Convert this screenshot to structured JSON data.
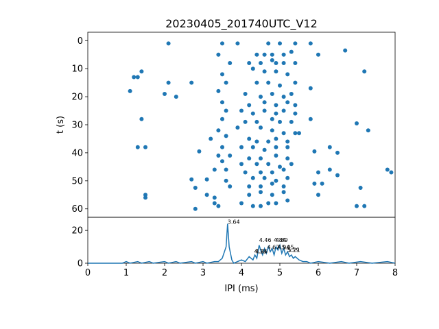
{
  "title": "20230405_201740UTC_V12",
  "colors": {
    "series": "#1f77b4",
    "axes": "#000000",
    "background": "#ffffff"
  },
  "chart_data": [
    {
      "type": "scatter",
      "ylabel": "t (s)",
      "xlim": [
        0,
        8
      ],
      "ylim": [
        63,
        -3
      ],
      "y_inverted": true,
      "yticks": [
        0,
        10,
        20,
        30,
        40,
        50,
        60
      ],
      "yticklabels": [
        "0",
        "10",
        "20",
        "30",
        "40",
        "50",
        "60"
      ],
      "grid": false,
      "points": [
        [
          2.1,
          1
        ],
        [
          3.5,
          1
        ],
        [
          3.9,
          1
        ],
        [
          4.7,
          1
        ],
        [
          5.0,
          1
        ],
        [
          5.4,
          1
        ],
        [
          5.8,
          1
        ],
        [
          3.4,
          5
        ],
        [
          4.4,
          5
        ],
        [
          4.6,
          5
        ],
        [
          4.8,
          5
        ],
        [
          5.1,
          5
        ],
        [
          5.3,
          4
        ],
        [
          6.0,
          5
        ],
        [
          6.7,
          3.5
        ],
        [
          3.7,
          8
        ],
        [
          4.2,
          8
        ],
        [
          4.5,
          8
        ],
        [
          4.8,
          7
        ],
        [
          4.9,
          8
        ],
        [
          5.1,
          8
        ],
        [
          5.4,
          8
        ],
        [
          1.4,
          11
        ],
        [
          3.5,
          12
        ],
        [
          4.3,
          10
        ],
        [
          4.6,
          11
        ],
        [
          4.9,
          11
        ],
        [
          5.2,
          12
        ],
        [
          7.2,
          11
        ],
        [
          1.2,
          13
        ],
        [
          1.3,
          13
        ],
        [
          2.1,
          15
        ],
        [
          2.7,
          15
        ],
        [
          3.6,
          15
        ],
        [
          4.4,
          15
        ],
        [
          4.7,
          15
        ],
        [
          5.0,
          16
        ],
        [
          5.4,
          15
        ],
        [
          5.8,
          17
        ],
        [
          1.1,
          18
        ],
        [
          2.0,
          19
        ],
        [
          2.3,
          20
        ],
        [
          3.4,
          18
        ],
        [
          4.1,
          19
        ],
        [
          4.5,
          20
        ],
        [
          4.8,
          19
        ],
        [
          5.1,
          20
        ],
        [
          5.3,
          19
        ],
        [
          3.5,
          22
        ],
        [
          4.2,
          23
        ],
        [
          4.6,
          22
        ],
        [
          4.9,
          23
        ],
        [
          5.2,
          22
        ],
        [
          5.4,
          23
        ],
        [
          3.6,
          25
        ],
        [
          4.0,
          25
        ],
        [
          4.3,
          26
        ],
        [
          4.6,
          25
        ],
        [
          4.9,
          26
        ],
        [
          5.1,
          25
        ],
        [
          5.4,
          26
        ],
        [
          1.4,
          28
        ],
        [
          3.5,
          28
        ],
        [
          4.1,
          29
        ],
        [
          4.4,
          29
        ],
        [
          4.8,
          28
        ],
        [
          5.0,
          29
        ],
        [
          5.3,
          29
        ],
        [
          5.8,
          28
        ],
        [
          7.0,
          29.5
        ],
        [
          3.4,
          32
        ],
        [
          3.9,
          31
        ],
        [
          4.5,
          31
        ],
        [
          4.8,
          32
        ],
        [
          5.1,
          33
        ],
        [
          5.4,
          33
        ],
        [
          5.5,
          33
        ],
        [
          7.3,
          32
        ],
        [
          3.2,
          35
        ],
        [
          3.6,
          34
        ],
        [
          4.2,
          35
        ],
        [
          4.4,
          36
        ],
        [
          4.7,
          36
        ],
        [
          4.9,
          35
        ],
        [
          5.2,
          36
        ],
        [
          1.3,
          38
        ],
        [
          1.5,
          38
        ],
        [
          3.5,
          38
        ],
        [
          4.0,
          38
        ],
        [
          4.3,
          38
        ],
        [
          4.6,
          39
        ],
        [
          4.9,
          38
        ],
        [
          5.2,
          38
        ],
        [
          5.9,
          39.5
        ],
        [
          6.3,
          38
        ],
        [
          2.9,
          39.5
        ],
        [
          3.4,
          41
        ],
        [
          3.7,
          41
        ],
        [
          4.2,
          42
        ],
        [
          4.5,
          42
        ],
        [
          4.9,
          41
        ],
        [
          5.2,
          42
        ],
        [
          6.5,
          40
        ],
        [
          3.5,
          43
        ],
        [
          4.0,
          44
        ],
        [
          4.4,
          44
        ],
        [
          4.7,
          44
        ],
        [
          5.0,
          45
        ],
        [
          5.3,
          44
        ],
        [
          3.3,
          46
        ],
        [
          3.6,
          46
        ],
        [
          4.1,
          47
        ],
        [
          4.5,
          47
        ],
        [
          4.8,
          47
        ],
        [
          5.1,
          46
        ],
        [
          6.0,
          47
        ],
        [
          6.3,
          46
        ],
        [
          7.8,
          46
        ],
        [
          7.9,
          47
        ],
        [
          2.7,
          49.5
        ],
        [
          3.1,
          49.5
        ],
        [
          3.6,
          50
        ],
        [
          4.3,
          49
        ],
        [
          4.6,
          49
        ],
        [
          4.9,
          50
        ],
        [
          5.2,
          49
        ],
        [
          6.5,
          48
        ],
        [
          2.8,
          52.5
        ],
        [
          3.7,
          52
        ],
        [
          4.2,
          52
        ],
        [
          4.5,
          52
        ],
        [
          4.8,
          51
        ],
        [
          5.1,
          52
        ],
        [
          5.9,
          51
        ],
        [
          6.1,
          51
        ],
        [
          7.1,
          52.5
        ],
        [
          1.5,
          55
        ],
        [
          1.5,
          56
        ],
        [
          3.1,
          55
        ],
        [
          3.3,
          56
        ],
        [
          4.2,
          55
        ],
        [
          4.5,
          54
        ],
        [
          4.8,
          55
        ],
        [
          5.1,
          54
        ],
        [
          6.0,
          55
        ],
        [
          2.8,
          60
        ],
        [
          3.3,
          58
        ],
        [
          3.4,
          59
        ],
        [
          4.0,
          58
        ],
        [
          4.3,
          59
        ],
        [
          4.5,
          59
        ],
        [
          4.7,
          58
        ],
        [
          4.9,
          58
        ],
        [
          5.2,
          57
        ],
        [
          7.0,
          59
        ],
        [
          7.2,
          59
        ]
      ]
    },
    {
      "type": "line",
      "xlabel": "IPI (ms)",
      "xlim": [
        0,
        8
      ],
      "ylim": [
        0,
        28
      ],
      "xticks": [
        0,
        1,
        2,
        3,
        4,
        5,
        6,
        7,
        8
      ],
      "xticklabels": [
        "0",
        "1",
        "2",
        "3",
        "4",
        "5",
        "6",
        "7",
        "8"
      ],
      "yticks": [
        0,
        20
      ],
      "yticklabels": [
        "0",
        "20"
      ],
      "grid": false,
      "series": [
        {
          "points": [
            [
              0,
              0
            ],
            [
              0.9,
              0
            ],
            [
              1.0,
              1
            ],
            [
              1.1,
              0
            ],
            [
              1.3,
              1
            ],
            [
              1.4,
              0
            ],
            [
              1.6,
              1
            ],
            [
              1.7,
              0
            ],
            [
              2.0,
              1
            ],
            [
              2.1,
              0
            ],
            [
              2.3,
              1
            ],
            [
              2.4,
              0
            ],
            [
              2.7,
              1
            ],
            [
              2.8,
              0
            ],
            [
              3.0,
              1
            ],
            [
              3.1,
              0
            ],
            [
              3.3,
              1
            ],
            [
              3.4,
              1
            ],
            [
              3.5,
              3
            ],
            [
              3.6,
              10
            ],
            [
              3.64,
              24
            ],
            [
              3.68,
              10
            ],
            [
              3.75,
              2
            ],
            [
              3.8,
              0
            ],
            [
              3.9,
              1
            ],
            [
              4.0,
              2
            ],
            [
              4.1,
              1
            ],
            [
              4.2,
              4
            ],
            [
              4.3,
              2
            ],
            [
              4.35,
              5
            ],
            [
              4.4,
              3
            ],
            [
              4.46,
              11
            ],
            [
              4.5,
              8
            ],
            [
              4.55,
              5
            ],
            [
              4.6,
              9
            ],
            [
              4.65,
              6
            ],
            [
              4.7,
              10
            ],
            [
              4.75,
              7
            ],
            [
              4.8,
              9
            ],
            [
              4.85,
              5
            ],
            [
              4.9,
              10
            ],
            [
              4.95,
              8
            ],
            [
              5.0,
              11
            ],
            [
              5.05,
              6
            ],
            [
              5.1,
              9
            ],
            [
              5.15,
              5
            ],
            [
              5.2,
              7
            ],
            [
              5.25,
              4
            ],
            [
              5.3,
              5
            ],
            [
              5.35,
              3
            ],
            [
              5.4,
              4
            ],
            [
              5.5,
              2
            ],
            [
              5.6,
              1
            ],
            [
              5.7,
              1
            ],
            [
              5.8,
              0
            ],
            [
              6.0,
              1
            ],
            [
              6.3,
              0
            ],
            [
              6.6,
              1
            ],
            [
              6.8,
              0
            ],
            [
              7.1,
              1
            ],
            [
              7.4,
              0
            ],
            [
              7.8,
              1
            ],
            [
              8.0,
              0
            ]
          ]
        }
      ],
      "annotations": [
        {
          "x": 3.64,
          "y": 24,
          "text": "3.64"
        },
        {
          "x": 4.46,
          "y": 13,
          "text": "4.46"
        },
        {
          "x": 4.84,
          "y": 13,
          "text": "4.84"
        },
        {
          "x": 4.89,
          "y": 13,
          "text": "4.89"
        },
        {
          "x": 4.33,
          "y": 6,
          "text": "4.33"
        },
        {
          "x": 4.36,
          "y": 6,
          "text": "4.36"
        },
        {
          "x": 4.67,
          "y": 8.5,
          "text": "4.67"
        },
        {
          "x": 4.94,
          "y": 8.5,
          "text": "4.94"
        },
        {
          "x": 5.05,
          "y": 8.5,
          "text": "5.05"
        },
        {
          "x": 5.19,
          "y": 7,
          "text": "5.19"
        },
        {
          "x": 5.21,
          "y": 7,
          "text": "5.21"
        }
      ]
    }
  ]
}
